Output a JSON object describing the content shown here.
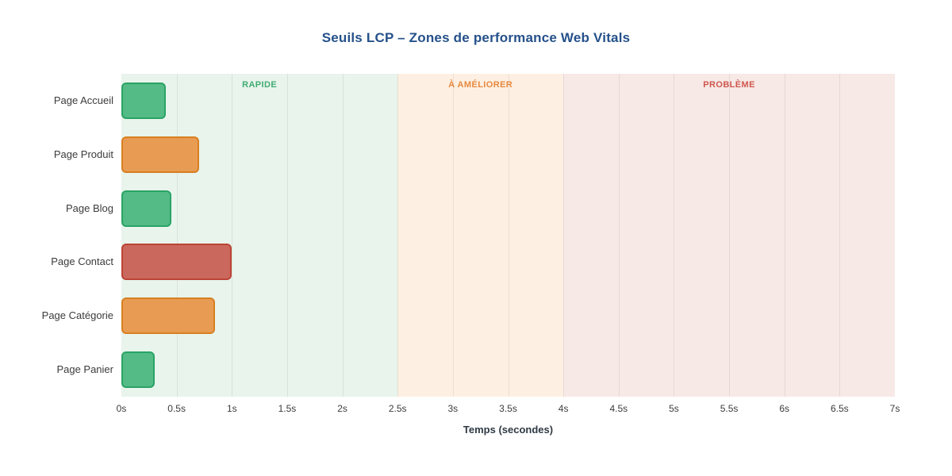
{
  "chart_data": {
    "type": "bar",
    "orientation": "horizontal",
    "title": "Seuils LCP – Zones de performance Web Vitals",
    "title_color": "#25518a",
    "xlabel": "Temps (secondes)",
    "xlim": [
      0,
      7
    ],
    "grid": true,
    "legend": false,
    "categories": [
      "Page Accueil",
      "Page Produit",
      "Page Blog",
      "Page Contact",
      "Page Catégorie",
      "Page Panier"
    ],
    "values": [
      0.4,
      0.7,
      0.45,
      1.0,
      0.85,
      0.3
    ],
    "bar_colors": [
      "green",
      "orange",
      "green",
      "red",
      "orange",
      "green"
    ],
    "palette": {
      "green": {
        "fill": "#54bb86",
        "border": "#2aa365"
      },
      "orange": {
        "fill": "#e89b52",
        "border": "#d87f22"
      },
      "red": {
        "fill": "#cb685d",
        "border": "#bc4436"
      }
    },
    "zones": [
      {
        "label": "RAPIDE",
        "from": 0,
        "to": 2.5,
        "bg": "#e8f4ec",
        "label_color": "#41ab72"
      },
      {
        "label": "À AMÉLIORER",
        "from": 2.5,
        "to": 4,
        "bg": "#fdf0e2",
        "label_color": "#e8883e"
      },
      {
        "label": "PROBLÈME",
        "from": 4,
        "to": 7,
        "bg": "#f7e9e6",
        "label_color": "#cf564d"
      }
    ],
    "x_ticks": [
      {
        "value": 0,
        "label": "0s"
      },
      {
        "value": 0.5,
        "label": "0.5s"
      },
      {
        "value": 1,
        "label": "1s"
      },
      {
        "value": 1.5,
        "label": "1.5s"
      },
      {
        "value": 2,
        "label": "2s"
      },
      {
        "value": 2.5,
        "label": "2.5s"
      },
      {
        "value": 3,
        "label": "3s"
      },
      {
        "value": 3.5,
        "label": "3.5s"
      },
      {
        "value": 4,
        "label": "4s"
      },
      {
        "value": 4.5,
        "label": "4.5s"
      },
      {
        "value": 5,
        "label": "5s"
      },
      {
        "value": 5.5,
        "label": "5.5s"
      },
      {
        "value": 6,
        "label": "6s"
      },
      {
        "value": 6.5,
        "label": "6.5s"
      },
      {
        "value": 7,
        "label": "7s"
      }
    ]
  }
}
